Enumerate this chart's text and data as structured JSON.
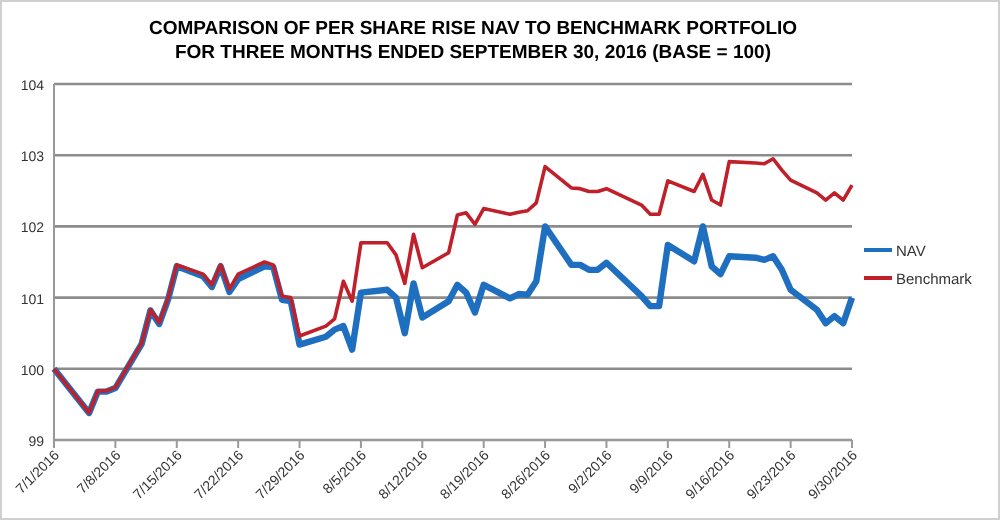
{
  "chart_data": {
    "type": "line",
    "title": "COMPARISON OF PER SHARE RISE NAV TO BENCHMARK PORTFOLIO\nFOR THREE MONTHS ENDED SEPTEMBER 30, 2016 (BASE = 100)",
    "x": [
      "2016-07-01",
      "2016-07-05",
      "2016-07-06",
      "2016-07-07",
      "2016-07-08",
      "2016-07-11",
      "2016-07-12",
      "2016-07-13",
      "2016-07-14",
      "2016-07-15",
      "2016-07-18",
      "2016-07-19",
      "2016-07-20",
      "2016-07-21",
      "2016-07-22",
      "2016-07-25",
      "2016-07-26",
      "2016-07-27",
      "2016-07-28",
      "2016-07-29",
      "2016-08-01",
      "2016-08-02",
      "2016-08-03",
      "2016-08-04",
      "2016-08-05",
      "2016-08-08",
      "2016-08-09",
      "2016-08-10",
      "2016-08-11",
      "2016-08-12",
      "2016-08-15",
      "2016-08-16",
      "2016-08-17",
      "2016-08-18",
      "2016-08-19",
      "2016-08-22",
      "2016-08-23",
      "2016-08-24",
      "2016-08-25",
      "2016-08-26",
      "2016-08-29",
      "2016-08-30",
      "2016-08-31",
      "2016-09-01",
      "2016-09-02",
      "2016-09-06",
      "2016-09-07",
      "2016-09-08",
      "2016-09-09",
      "2016-09-12",
      "2016-09-13",
      "2016-09-14",
      "2016-09-15",
      "2016-09-16",
      "2016-09-19",
      "2016-09-20",
      "2016-09-21",
      "2016-09-22",
      "2016-09-23",
      "2016-09-26",
      "2016-09-27",
      "2016-09-28",
      "2016-09-29",
      "2016-09-30"
    ],
    "series": [
      {
        "name": "NAV",
        "color": "#1f6fc0",
        "values": [
          100.0,
          99.38,
          99.68,
          99.68,
          99.73,
          100.35,
          100.82,
          100.63,
          100.97,
          101.44,
          101.3,
          101.15,
          101.44,
          101.08,
          101.26,
          101.44,
          101.43,
          100.97,
          100.95,
          100.34,
          100.45,
          100.55,
          100.6,
          100.27,
          101.07,
          101.11,
          101.0,
          100.5,
          101.2,
          100.72,
          100.95,
          101.18,
          101.07,
          100.79,
          101.18,
          100.99,
          101.05,
          101.04,
          101.23,
          102.0,
          101.46,
          101.46,
          101.39,
          101.39,
          101.49,
          101.02,
          100.88,
          100.88,
          101.74,
          101.51,
          102.0,
          101.44,
          101.33,
          101.58,
          101.56,
          101.53,
          101.58,
          101.39,
          101.11,
          100.83,
          100.64,
          100.74,
          100.64,
          101.0
        ]
      },
      {
        "name": "Benchmark",
        "color": "#c0202a",
        "values": [
          100.0,
          99.38,
          99.69,
          99.69,
          99.74,
          100.36,
          100.83,
          100.65,
          100.99,
          101.46,
          101.33,
          101.18,
          101.46,
          101.12,
          101.33,
          101.5,
          101.46,
          101.02,
          101.0,
          100.46,
          100.6,
          100.7,
          101.23,
          100.95,
          101.77,
          101.77,
          101.6,
          101.2,
          101.89,
          101.42,
          101.63,
          102.16,
          102.19,
          102.03,
          102.25,
          102.17,
          102.2,
          102.22,
          102.33,
          102.84,
          102.54,
          102.53,
          102.49,
          102.49,
          102.53,
          102.3,
          102.17,
          102.17,
          102.64,
          102.49,
          102.73,
          102.37,
          102.3,
          102.91,
          102.89,
          102.88,
          102.95,
          102.79,
          102.65,
          102.47,
          102.37,
          102.47,
          102.37,
          102.58
        ]
      }
    ],
    "xlim": [
      "2016-07-01",
      "2016-09-30"
    ],
    "xticks": [
      {
        "value": "2016-07-01",
        "label": "7/1/2016"
      },
      {
        "value": "2016-07-08",
        "label": "7/8/2016"
      },
      {
        "value": "2016-07-15",
        "label": "7/15/2016"
      },
      {
        "value": "2016-07-22",
        "label": "7/22/2016"
      },
      {
        "value": "2016-07-29",
        "label": "7/29/2016"
      },
      {
        "value": "2016-08-05",
        "label": "8/5/2016"
      },
      {
        "value": "2016-08-12",
        "label": "8/12/2016"
      },
      {
        "value": "2016-08-19",
        "label": "8/19/2016"
      },
      {
        "value": "2016-08-26",
        "label": "8/26/2016"
      },
      {
        "value": "2016-09-02",
        "label": "9/2/2016"
      },
      {
        "value": "2016-09-09",
        "label": "9/9/2016"
      },
      {
        "value": "2016-09-16",
        "label": "9/16/2016"
      },
      {
        "value": "2016-09-23",
        "label": "9/23/2016"
      },
      {
        "value": "2016-09-30",
        "label": "9/30/2016"
      }
    ],
    "ylim": [
      99,
      104
    ],
    "yticks": [
      99,
      100,
      101,
      102,
      103,
      104
    ],
    "grid": "y",
    "legend": "right",
    "marker": "none",
    "line_style": "solid"
  }
}
